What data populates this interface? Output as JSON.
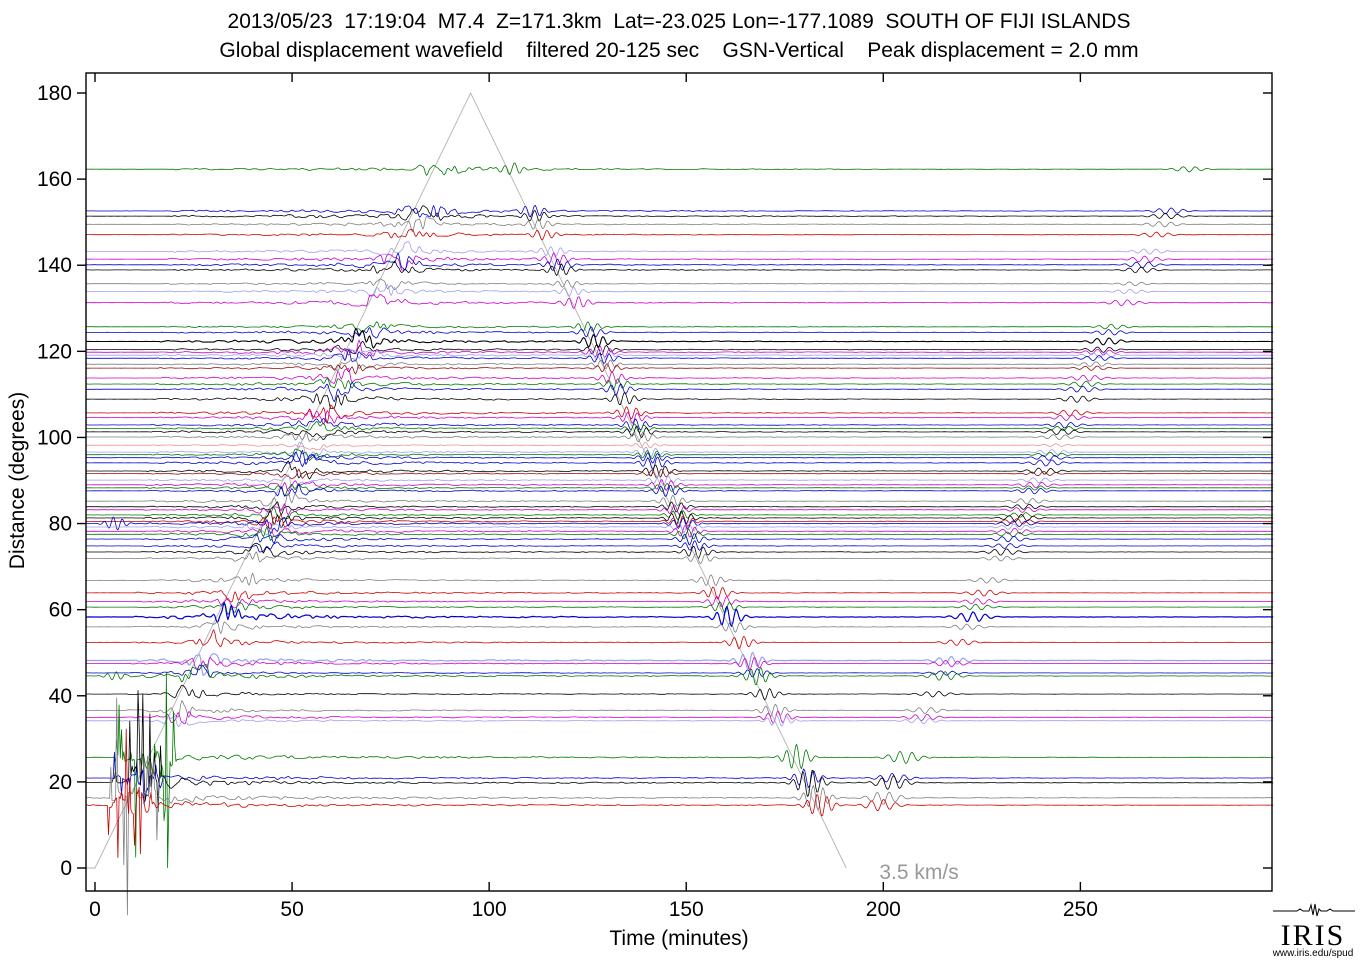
{
  "chart_data": {
    "type": "line",
    "subtype": "seismic-record-section",
    "title": "2013/05/23  17:19:04  M7.4  Z=171.3km  Lat=-23.025 Lon=-177.1089  SOUTH OF FIJI ISLANDS",
    "subtitle": "Global displacement wavefield    filtered 20-125 sec    GSN-Vertical    Peak displacement = 2.0 mm",
    "event": {
      "date": "2013/05/23",
      "time": "17:19:04",
      "magnitude": "M7.4",
      "depth_km": 171.3,
      "lat": -23.025,
      "lon": -177.1089,
      "region": "SOUTH OF FIJI ISLANDS"
    },
    "wavefield": "Global displacement wavefield",
    "filter": "20-125 sec",
    "channel": "GSN-Vertical",
    "peak_displacement_mm": 2.0,
    "xlabel": "Time (minutes)",
    "ylabel": "Distance (degrees)",
    "xlim": [
      -2.3,
      298.6
    ],
    "ylim": [
      -5.4,
      185.3
    ],
    "xticks": [
      0,
      50,
      100,
      150,
      200,
      250
    ],
    "yticks": [
      0,
      20,
      40,
      60,
      80,
      100,
      120,
      140,
      160,
      180
    ],
    "grid": false,
    "legend": null,
    "moveout_line": {
      "label": "3.5 km/s",
      "velocity_km_s": 3.5,
      "min_per_deg": 0.5295,
      "vertices_t_deg": [
        [
          0,
          0
        ],
        [
          95.3,
          180
        ],
        [
          190.6,
          0
        ]
      ],
      "color": "#b3b3b3",
      "label_color": "#999999"
    },
    "palette": {
      "black": "#000000",
      "red": "#cc0000",
      "blue": "#0000cd",
      "green": "#007a00",
      "gray": "#7f7f7f",
      "magenta": "#cc00cc",
      "lavender": "#9e9ef0",
      "salmon": "#f09090",
      "darkred": "#8f1010"
    },
    "traces": [
      {
        "d": 162.3,
        "c": "green",
        "a": 0.85
      },
      {
        "d": 152.6,
        "c": "blue",
        "a": 0.95
      },
      {
        "d": 151.4,
        "c": "black",
        "a": 0.9
      },
      {
        "d": 149.5,
        "c": "gray",
        "a": 0.85
      },
      {
        "d": 147.1,
        "c": "red",
        "a": 0.8
      },
      {
        "d": 143.2,
        "c": "lavender",
        "a": 0.85
      },
      {
        "d": 141.4,
        "c": "magenta",
        "a": 0.95
      },
      {
        "d": 140.1,
        "c": "blue",
        "a": 0.95
      },
      {
        "d": 138.9,
        "c": "black",
        "a": 0.9
      },
      {
        "d": 135.7,
        "c": "gray",
        "a": 0.6
      },
      {
        "d": 133.9,
        "c": "lavender",
        "a": 0.7
      },
      {
        "d": 131.3,
        "c": "magenta",
        "a": 0.95
      },
      {
        "d": 125.7,
        "c": "green",
        "a": 0.8
      },
      {
        "d": 124.4,
        "c": "blue",
        "a": 0.85
      },
      {
        "d": 122.3,
        "c": "black",
        "a": 1.1,
        "lw": 1.1
      },
      {
        "d": 120.4,
        "c": "black",
        "a": 0.9
      },
      {
        "d": 119.8,
        "c": "magenta",
        "a": 0.9
      },
      {
        "d": 119.1,
        "c": "lavender",
        "a": 0.8
      },
      {
        "d": 118.4,
        "c": "blue",
        "a": 0.85
      },
      {
        "d": 117.0,
        "c": "gray",
        "a": 0.75
      },
      {
        "d": 116.1,
        "c": "darkred",
        "a": 0.7
      },
      {
        "d": 113.8,
        "c": "magenta",
        "a": 0.95
      },
      {
        "d": 112.4,
        "c": "green",
        "a": 0.9
      },
      {
        "d": 111.2,
        "c": "blue",
        "a": 0.95
      },
      {
        "d": 108.9,
        "c": "black",
        "a": 1.05
      },
      {
        "d": 105.7,
        "c": "red",
        "a": 1.0
      },
      {
        "d": 104.6,
        "c": "magenta",
        "a": 0.9
      },
      {
        "d": 102.9,
        "c": "blue",
        "a": 0.9
      },
      {
        "d": 102.1,
        "c": "green",
        "a": 0.7
      },
      {
        "d": 101.3,
        "c": "black",
        "a": 0.95
      },
      {
        "d": 100.1,
        "c": "gray",
        "a": 0.8
      },
      {
        "d": 98.2,
        "c": "salmon",
        "a": 0.45
      },
      {
        "d": 96.6,
        "c": "lavender",
        "a": 0.8
      },
      {
        "d": 96.0,
        "c": "green",
        "a": 0.7
      },
      {
        "d": 95.3,
        "c": "blue",
        "a": 0.8
      },
      {
        "d": 94.1,
        "c": "blue",
        "a": 1.0
      },
      {
        "d": 92.2,
        "c": "black",
        "a": 1.0
      },
      {
        "d": 91.6,
        "c": "darkred",
        "a": 0.7
      },
      {
        "d": 90.1,
        "c": "lavender",
        "a": 0.8
      },
      {
        "d": 89.0,
        "c": "magenta",
        "a": 0.9
      },
      {
        "d": 88.3,
        "c": "green",
        "a": 0.7
      },
      {
        "d": 87.6,
        "c": "blue",
        "a": 0.9
      },
      {
        "d": 85.2,
        "c": "gray",
        "a": 0.9
      },
      {
        "d": 83.9,
        "c": "black",
        "a": 0.8
      },
      {
        "d": 83.2,
        "c": "magenta",
        "a": 0.8
      },
      {
        "d": 82.0,
        "c": "green",
        "a": 0.75
      },
      {
        "d": 81.3,
        "c": "black",
        "a": 1.1
      },
      {
        "d": 80.5,
        "c": "red",
        "a": 0.9
      },
      {
        "d": 80.0,
        "c": "blue",
        "a": 0.9,
        "ew": 1.6
      },
      {
        "d": 79.2,
        "c": "lavender",
        "a": 0.9
      },
      {
        "d": 78.2,
        "c": "magenta",
        "a": 0.95
      },
      {
        "d": 77.5,
        "c": "green",
        "a": 0.8
      },
      {
        "d": 76.4,
        "c": "blue",
        "a": 0.9
      },
      {
        "d": 74.8,
        "c": "blue",
        "a": 0.8
      },
      {
        "d": 73.4,
        "c": "black",
        "a": 1.0
      },
      {
        "d": 71.9,
        "c": "gray",
        "a": 0.8
      },
      {
        "d": 66.8,
        "c": "gray",
        "a": 0.9
      },
      {
        "d": 63.9,
        "c": "red",
        "a": 1.0
      },
      {
        "d": 61.9,
        "c": "magenta",
        "a": 0.9
      },
      {
        "d": 60.6,
        "c": "green",
        "a": 0.9
      },
      {
        "d": 58.3,
        "c": "blue",
        "a": 1.6,
        "lw": 1.2
      },
      {
        "d": 56.0,
        "c": "gray",
        "a": 0.9
      },
      {
        "d": 52.4,
        "c": "red",
        "a": 1.0
      },
      {
        "d": 48.2,
        "c": "lavender",
        "a": 1.3,
        "lw": 1.2
      },
      {
        "d": 47.5,
        "c": "magenta",
        "a": 1.0
      },
      {
        "d": 45.3,
        "c": "blue",
        "a": 0.7
      },
      {
        "d": 44.6,
        "c": "green",
        "a": 1.4,
        "ew": 1.0
      },
      {
        "d": 40.4,
        "c": "black",
        "a": 0.9
      },
      {
        "d": 36.6,
        "c": "gray",
        "a": 1.0
      },
      {
        "d": 35.0,
        "c": "magenta",
        "a": 1.0
      },
      {
        "d": 34.2,
        "c": "lavender",
        "a": 0.9
      },
      {
        "d": 25.7,
        "c": "green",
        "a": 2.0,
        "s": 30
      },
      {
        "d": 20.9,
        "c": "blue",
        "a": 1.5,
        "s": 7
      },
      {
        "d": 19.8,
        "c": "black",
        "a": 2.2,
        "s": 24
      },
      {
        "d": 16.3,
        "c": "gray",
        "a": 2.0,
        "s": 30
      },
      {
        "d": 14.6,
        "c": "red",
        "a": 1.8,
        "s": 18
      }
    ]
  },
  "branding": {
    "name": "IRIS",
    "url": "www.iris.edu/spud"
  }
}
